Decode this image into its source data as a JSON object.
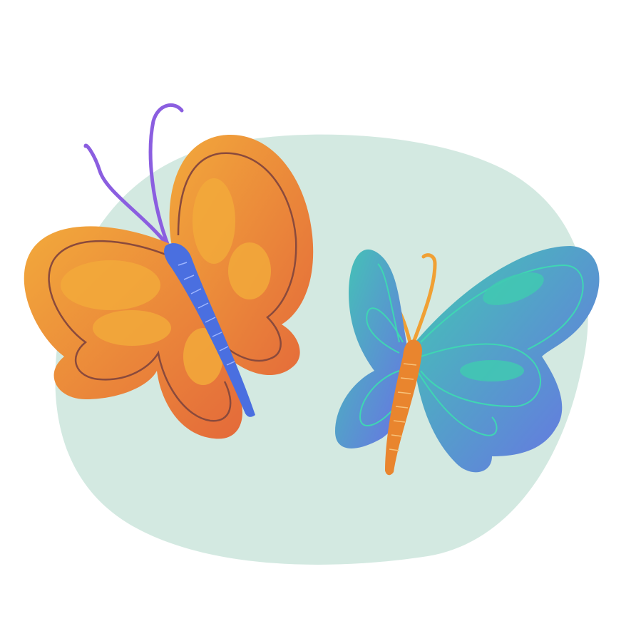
{
  "colors": {
    "background": "#ffffff",
    "backdrop_blob": "#d3e9e1",
    "orange_wing_light": "#f2a93b",
    "orange_wing_dark": "#e46a3a",
    "orange_wing_outline": "#8a4a3c",
    "orange_body": "#4a6fe0",
    "blue_wing_light": "#41c9b2",
    "blue_wing_dark": "#6a6fe6",
    "blue_wing_outline": "#3fd6b3",
    "blue_body": "#e9852e",
    "antenna_purple": "#8b5ee0",
    "antenna_orange": "#f0a034"
  },
  "illustration": {
    "subjects": [
      "orange-butterfly",
      "blue-butterfly"
    ],
    "backdrop": "oval-blob"
  }
}
